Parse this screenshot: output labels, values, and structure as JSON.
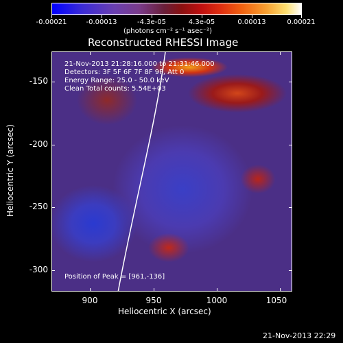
{
  "colorbar": {
    "labels": [
      "-0.00021",
      "-0.00013",
      "-4.3e-05",
      "4.3e-05",
      "0.00013",
      "0.00021"
    ],
    "units": "(photons cm⁻² s⁻¹ asec⁻²)"
  },
  "title": "Reconstructed RHESSI Image",
  "overlay": {
    "time": "21-Nov-2013 21:28:16.000 to 21:31:46.000",
    "detectors": "Detectors: 3F 5F 6F 7F 8F 9F, Att 0",
    "energy": "Energy Range: 25.0 - 50.0 keV",
    "clean": "Clean     Total counts: 5.54E+03",
    "peak": "Position of Peak = [961,-136]"
  },
  "axes": {
    "xlabel": "Heliocentric X (arcsec)",
    "ylabel": "Heliocentric Y (arcsec)",
    "xticks": [
      "900",
      "950",
      "1000",
      "1050"
    ],
    "yticks": [
      "-150",
      "-200",
      "-250",
      "-300"
    ]
  },
  "footer": {
    "timestamp": "21-Nov-2013 22:29"
  },
  "colors": {
    "background": "#000000",
    "text": "#ffffff"
  }
}
